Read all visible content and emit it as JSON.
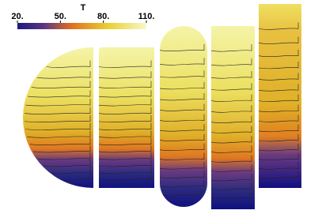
{
  "colorbar": {
    "title": "T",
    "lim": [
      20,
      110
    ],
    "ticks": [
      {
        "value": 20,
        "label": "20."
      },
      {
        "value": 50,
        "label": "50."
      },
      {
        "value": 80,
        "label": "80."
      },
      {
        "value": 110,
        "label": "110."
      }
    ]
  }
}
